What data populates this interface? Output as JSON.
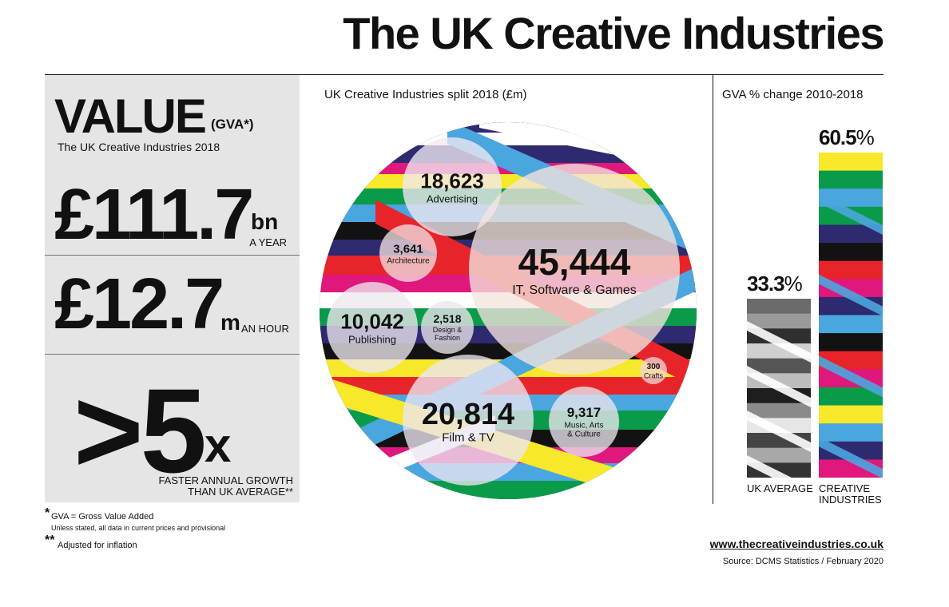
{
  "page": {
    "title": "The UK Creative Industries"
  },
  "value_panel": {
    "value_word": "VALUE",
    "value_paren": "(GVA*)",
    "subtitle": "The UK Creative Industries 2018",
    "year_figure": "£111.7",
    "year_unit": "bn",
    "year_caption": "A YEAR",
    "hour_figure": "£12.7",
    "hour_unit": "m",
    "hour_caption": "AN HOUR",
    "growth_figure": ">5",
    "growth_x": "x",
    "growth_caption_1": "FASTER ANNUAL GROWTH",
    "growth_caption_2": "THAN UK AVERAGE**"
  },
  "footnotes": {
    "gva_star": "*",
    "gva": "GVA = Gross Value Added",
    "unless": "Unless stated, all data in current prices and provisional",
    "infl_star": "**",
    "inflation": "Adjusted for inflation"
  },
  "chart_data": [
    {
      "type": "bubble",
      "title": "UK Creative Industries split 2018 (£m)",
      "categories": [
        "Advertising",
        "Architecture",
        "IT, Software & Games",
        "Publishing",
        "Design & Fashion",
        "Crafts",
        "Film & TV",
        "Music, Arts & Culture"
      ],
      "value_labels": [
        "18,623",
        "3,641",
        "45,444",
        "10,042",
        "2,518",
        "300",
        "20,814",
        "9,317"
      ],
      "values": [
        18623,
        3641,
        45444,
        10042,
        2518,
        300,
        20814,
        9317
      ]
    },
    {
      "type": "bar",
      "title": "GVA % change 2010-2018",
      "categories": [
        "UK AVERAGE",
        "CREATIVE INDUSTRIES"
      ],
      "values": [
        33.3,
        60.5
      ],
      "value_labels": [
        "33.3",
        "60.5"
      ],
      "unit": "%"
    }
  ],
  "footer": {
    "url": "www.thecreativeindustries.co.uk",
    "source": "Source: DCMS Statistics / February 2020"
  },
  "colors": {
    "navy": "#2e2a70",
    "blue": "#4aa6de",
    "green": "#0a9b4a",
    "red": "#e8242b",
    "pink": "#e0177c",
    "yellow": "#f7e82a",
    "black": "#121212",
    "panel": "#e5e5e5"
  }
}
